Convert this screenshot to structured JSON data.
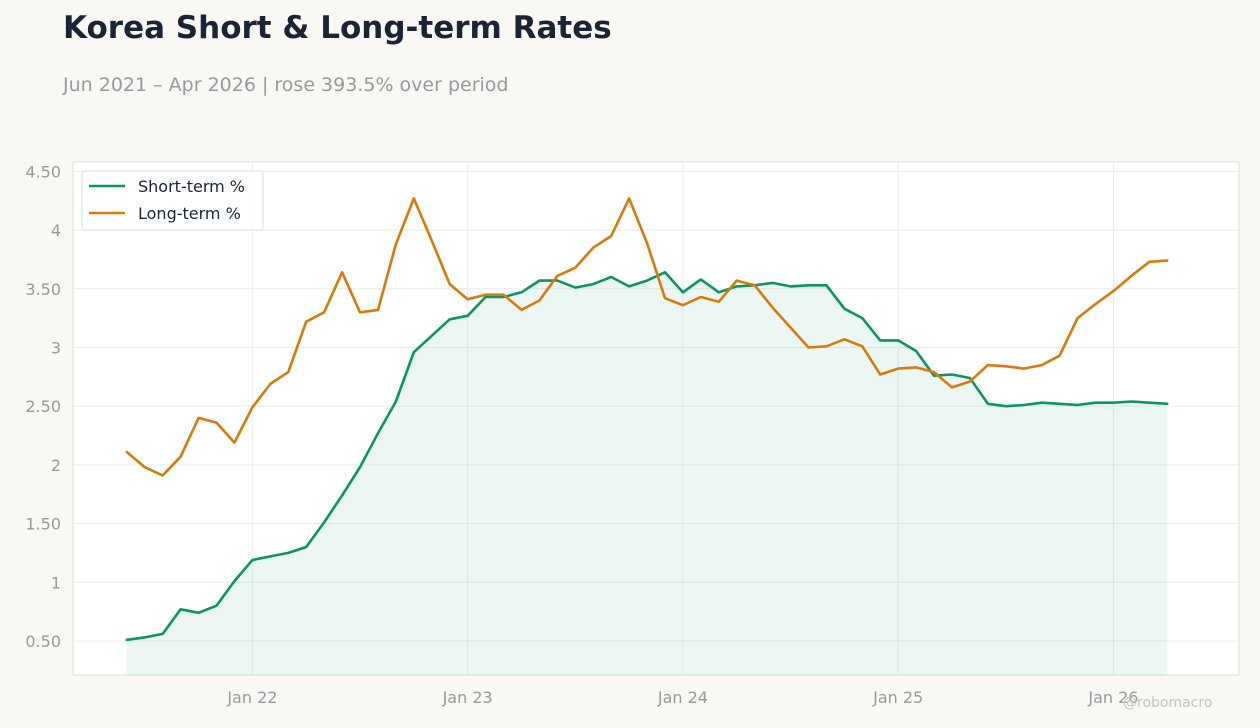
{
  "header": {
    "title": "Korea Short & Long-term Rates",
    "subtitle": "Jun 2021 – Apr 2026 | rose 393.5% over period"
  },
  "watermark": "@robomacro",
  "colors": {
    "background": "#f9f8f5",
    "short": "#0b9468",
    "long": "#d97a0b"
  },
  "chart_data": {
    "type": "line",
    "x": [
      "2021-06",
      "2021-07",
      "2021-08",
      "2021-09",
      "2021-10",
      "2021-11",
      "2021-12",
      "2022-01",
      "2022-02",
      "2022-03",
      "2022-04",
      "2022-05",
      "2022-06",
      "2022-07",
      "2022-08",
      "2022-09",
      "2022-10",
      "2022-11",
      "2022-12",
      "2023-01",
      "2023-02",
      "2023-03",
      "2023-04",
      "2023-05",
      "2023-06",
      "2023-07",
      "2023-08",
      "2023-09",
      "2023-10",
      "2023-11",
      "2023-12",
      "2024-01",
      "2024-02",
      "2024-03",
      "2024-04",
      "2024-05",
      "2024-06",
      "2024-07",
      "2024-08",
      "2024-09",
      "2024-10",
      "2024-11",
      "2024-12",
      "2025-01",
      "2025-02",
      "2025-03",
      "2025-04",
      "2025-05",
      "2025-06",
      "2025-07",
      "2025-08",
      "2025-09",
      "2025-10",
      "2025-11",
      "2025-12",
      "2026-01",
      "2026-02",
      "2026-03",
      "2026-04"
    ],
    "series": [
      {
        "name": "Short-term %",
        "fill": true,
        "values": [
          0.51,
          0.53,
          0.56,
          0.77,
          0.74,
          0.8,
          1.01,
          1.19,
          1.22,
          1.25,
          1.3,
          1.51,
          1.74,
          1.98,
          2.27,
          2.54,
          2.96,
          3.1,
          3.24,
          3.27,
          3.43,
          3.43,
          3.47,
          3.57,
          3.57,
          3.51,
          3.54,
          3.6,
          3.52,
          3.57,
          3.64,
          3.47,
          3.58,
          3.47,
          3.52,
          3.53,
          3.55,
          3.52,
          3.53,
          3.53,
          3.33,
          3.25,
          3.06,
          3.06,
          2.97,
          2.76,
          2.77,
          2.74,
          2.52,
          2.5,
          2.51,
          2.53,
          2.52,
          2.51,
          2.53,
          2.53,
          2.54,
          2.53,
          2.52
        ]
      },
      {
        "name": "Long-term %",
        "fill": false,
        "values": [
          2.11,
          1.98,
          1.91,
          2.07,
          2.4,
          2.36,
          2.19,
          2.49,
          2.69,
          2.79,
          3.22,
          3.3,
          3.64,
          3.3,
          3.32,
          3.88,
          4.27,
          3.91,
          3.54,
          3.41,
          3.45,
          3.45,
          3.32,
          3.4,
          3.61,
          3.68,
          3.85,
          3.95,
          4.27,
          3.89,
          3.42,
          3.36,
          3.43,
          3.39,
          3.57,
          3.53,
          3.34,
          3.17,
          3.0,
          3.01,
          3.07,
          3.01,
          2.77,
          2.82,
          2.83,
          2.79,
          2.66,
          2.71,
          2.85,
          2.84,
          2.82,
          2.85,
          2.93,
          3.25,
          3.37,
          3.48,
          3.61,
          3.73,
          3.74
        ]
      }
    ],
    "x_ticks": [
      {
        "date": "2022-01",
        "label": "Jan 22"
      },
      {
        "date": "2023-01",
        "label": "Jan 23"
      },
      {
        "date": "2024-01",
        "label": "Jan 24"
      },
      {
        "date": "2025-01",
        "label": "Jan 25"
      },
      {
        "date": "2026-01",
        "label": "Jan 26"
      }
    ],
    "xlim": [
      "2021-03",
      "2026-08"
    ],
    "y_ticks": [
      {
        "value": 0.5,
        "label": "0.50"
      },
      {
        "value": 1,
        "label": "1"
      },
      {
        "value": 1.5,
        "label": "1.50"
      },
      {
        "value": 2,
        "label": "2"
      },
      {
        "value": 2.5,
        "label": "2.50"
      },
      {
        "value": 3,
        "label": "3"
      },
      {
        "value": 3.5,
        "label": "3.50"
      },
      {
        "value": 4,
        "label": "4"
      },
      {
        "value": 4.5,
        "label": "4.50"
      }
    ],
    "ylim": [
      0.21,
      4.58
    ],
    "grid": true,
    "legend": "top-left"
  }
}
